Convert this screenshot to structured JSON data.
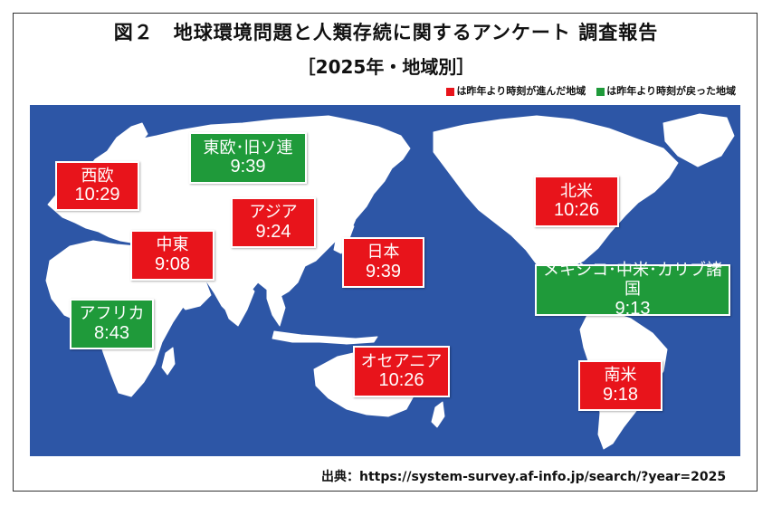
{
  "title": "図２　地球環境問題と人類存続に関するアンケート 調査報告",
  "subtitle": "［2025年・地域別］",
  "legend": {
    "red": "は昨年より時刻が進んだ地域",
    "green": "は昨年より時刻が戻った地域",
    "red_color": "#e8141b",
    "green_color": "#1f9a3a"
  },
  "regions": [
    {
      "id": "western-europe",
      "name": "西欧",
      "time": "10:29",
      "status": "advanced"
    },
    {
      "id": "eastern-europe",
      "name": "東欧･旧ソ連",
      "time": "9:39",
      "status": "reversed"
    },
    {
      "id": "asia",
      "name": "アジア",
      "time": "9:24",
      "status": "advanced"
    },
    {
      "id": "middle-east",
      "name": "中東",
      "time": "9:08",
      "status": "advanced"
    },
    {
      "id": "japan",
      "name": "日本",
      "time": "9:39",
      "status": "advanced"
    },
    {
      "id": "africa",
      "name": "アフリカ",
      "time": "8:43",
      "status": "reversed"
    },
    {
      "id": "oceania",
      "name": "オセアニア",
      "time": "10:26",
      "status": "advanced"
    },
    {
      "id": "north-america",
      "name": "北米",
      "time": "10:26",
      "status": "advanced"
    },
    {
      "id": "latin-america",
      "name": "メキシコ･中米･カリブ諸国",
      "time": "9:13",
      "status": "reversed"
    },
    {
      "id": "south-america",
      "name": "南米",
      "time": "9:18",
      "status": "advanced"
    }
  ],
  "source": "出典：https://system-survey.af-info.jp/search/?year=2025",
  "colors": {
    "ocean": "#2d56a6",
    "land": "#ffffff"
  }
}
